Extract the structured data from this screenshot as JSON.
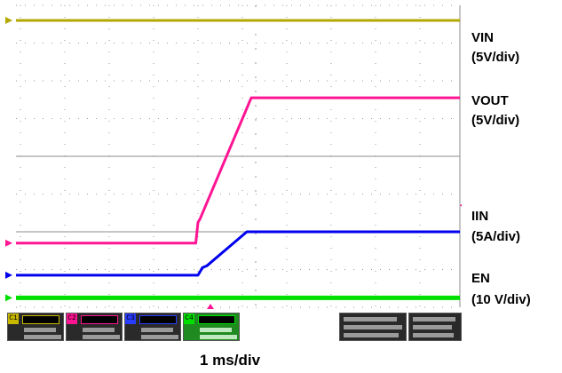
{
  "chart_data": {
    "type": "line",
    "title": "",
    "xlabel": "1 ms/div",
    "ylabel": "",
    "grid": true,
    "x_unit": "ms",
    "xlim": [
      -4.1,
      5.9
    ],
    "ylim": [
      -4,
      4
    ],
    "series": [
      {
        "name": "VIN",
        "scale": "5V/div",
        "color": "#b3a800",
        "x": [
          -4.1,
          -0.5,
          5.9
        ],
        "y": [
          3.6,
          3.6,
          3.6
        ]
      },
      {
        "name": "VOUT",
        "scale": "5V/div",
        "color": "#ff1493",
        "x": [
          -4.1,
          -0.05,
          0.0,
          0.05,
          1.2,
          5.9
        ],
        "y": [
          -2.3,
          -2.3,
          -1.75,
          -1.65,
          1.55,
          1.55
        ]
      },
      {
        "name": "IIN",
        "scale": "5A/div",
        "color": "#0000ee",
        "x": [
          -4.1,
          0.0,
          0.1,
          0.2,
          1.1,
          5.9
        ],
        "y": [
          -3.15,
          -3.15,
          -2.95,
          -2.9,
          -2.0,
          -2.0
        ]
      },
      {
        "name": "EN",
        "scale": "10 V/div",
        "color": "#00e000",
        "x": [
          -4.1,
          5.9
        ],
        "y": [
          -3.75,
          -3.75
        ]
      }
    ]
  },
  "labels": {
    "vin": "VIN",
    "vin_scale": "(5V/div)",
    "vout": "VOUT",
    "vout_scale": "(5V/div)",
    "iin": "IIN",
    "iin_scale": "(5A/div)",
    "en": "EN",
    "en_scale": "(10 V/div)",
    "timebase": "1 ms/div"
  },
  "channel_tags": [
    "C1",
    "C2",
    "C3",
    "C4"
  ]
}
